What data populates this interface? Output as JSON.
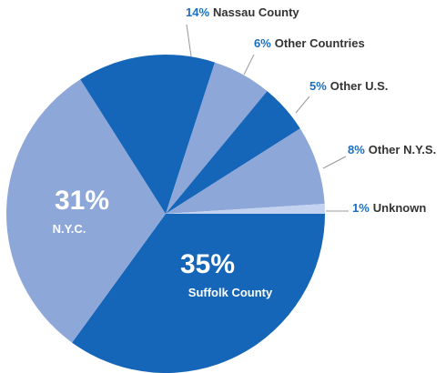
{
  "chart_data": {
    "type": "pie",
    "categories": [
      "Suffolk County",
      "N.Y.C.",
      "Nassau County",
      "Other Countries",
      "Other U.S.",
      "Other N.Y.S.",
      "Unknown"
    ],
    "values": [
      35,
      31,
      14,
      6,
      5,
      8,
      1
    ],
    "value_labels": [
      "35%",
      "31%",
      "14%",
      "6%",
      "5%",
      "8%",
      "1%"
    ],
    "colors": [
      "#1565b8",
      "#8ea7d9",
      "#1565b8",
      "#8ea7d9",
      "#1565b8",
      "#8ea7d9",
      "#c3d2ee"
    ]
  }
}
